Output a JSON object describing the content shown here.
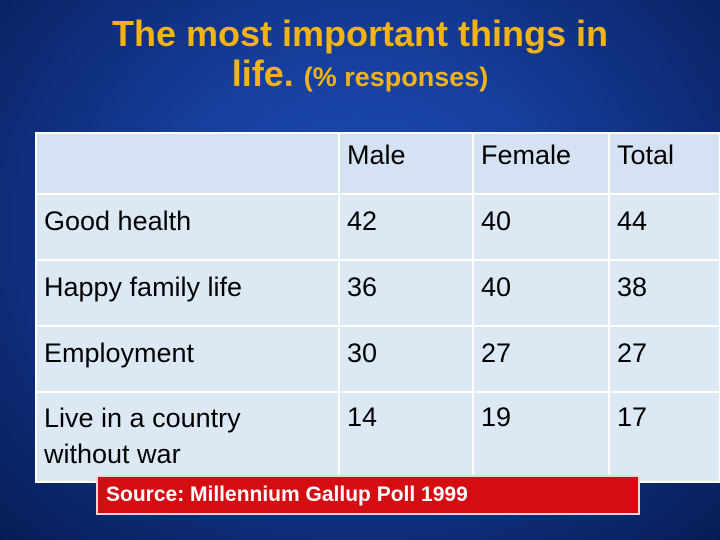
{
  "slide": {
    "title_line1": "The most important things in",
    "title_line2_main": "life.",
    "title_line2_sub": "(% responses)",
    "title_color": "#f2b21a",
    "background_color": "#1a46a6"
  },
  "table": {
    "headers": [
      "",
      "Male",
      "Female",
      "Total"
    ],
    "rows": [
      {
        "label": "Good  health",
        "male": "42",
        "female": "40",
        "total": "44"
      },
      {
        "label": "Happy family life",
        "male": "36",
        "female": "40",
        "total": "38"
      },
      {
        "label": "Employment",
        "male": "30",
        "female": "27",
        "total": "27"
      },
      {
        "label": "Live  in a country without war",
        "male": "14",
        "female": "19",
        "total": "17"
      }
    ],
    "cell_color": "#dde8f5"
  },
  "source": {
    "text": "Source: Millennium Gallup Poll 1999",
    "box_color": "#d40d12"
  }
}
